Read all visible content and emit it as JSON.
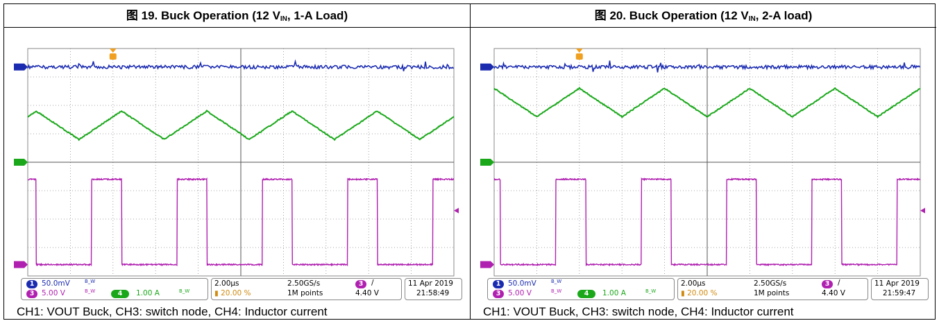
{
  "panels": [
    {
      "title_fig": "图 19. Buck Operation (12 V",
      "title_sub": "IN",
      "title_rest": ", 1-A Load)",
      "caption": "CH1: VOUT Buck, CH3: switch node, CH4: Inductor current",
      "status": {
        "ch1_num": "1",
        "ch1_scale": "50.0mV",
        "ch3_num": "3",
        "ch3_scale": "5.00 V",
        "ch4_num": "4",
        "ch4_scale": "1.00 A",
        "bw": "B_W",
        "timebase": "2.00µs",
        "trigger_pos": "20.00 %",
        "sample_rate": "2.50GS/s",
        "record": "1M points",
        "trig_ch": "3",
        "trig_slope": "/",
        "trig_level": "4.40 V",
        "date": "11 Apr  2019",
        "time": "21:58:49"
      }
    },
    {
      "title_fig": "图 20. Buck Operation (12 V",
      "title_sub": "IN",
      "title_rest": ", 2-A load)",
      "caption": "CH1: VOUT Buck, CH3: switch node, CH4: Inductor current",
      "status": {
        "ch1_num": "1",
        "ch1_scale": "50.0mV",
        "ch3_num": "3",
        "ch3_scale": "5.00 V",
        "ch4_num": "4",
        "ch4_scale": "1.00 A",
        "bw": "B_W",
        "timebase": "2.00µs",
        "trigger_pos": "20.00 %",
        "sample_rate": "2.50GS/s",
        "record": "1M points",
        "trig_ch": "3",
        "trig_slope": "/",
        "trig_level": "4.40 V",
        "date": "11 Apr  2019",
        "time": "21:59:47"
      }
    }
  ],
  "colors": {
    "ch1": "#1a2bb0",
    "ch3": "#b020b0",
    "ch4": "#1aa81a",
    "trigger": "#f0a020",
    "grid": "#8a8a8a"
  },
  "chart_data": [
    {
      "type": "line",
      "title": "图 19. Buck Operation (12 VIN, 1-A Load)",
      "x_divisions": 10,
      "y_divisions": 8,
      "timebase_per_div_us": 2.0,
      "trigger_position_pct": 20,
      "series": [
        {
          "name": "CH1: VOUT Buck",
          "shape": "flat with noise",
          "level_div": 7.35
        },
        {
          "name": "CH4: Inductor current",
          "shape": "triangle",
          "period_div": 2.0,
          "min_div": 4.8,
          "max_div": 5.8,
          "phase_div": 0.2
        },
        {
          "name": "CH3: switch node",
          "shape": "square",
          "period_div": 2.0,
          "duty": 0.35,
          "low_div": 0.4,
          "high_div": 3.4,
          "phase_div": 1.5
        }
      ]
    },
    {
      "type": "line",
      "title": "图 20. Buck Operation (12 VIN, 2-A load)",
      "x_divisions": 10,
      "y_divisions": 8,
      "timebase_per_div_us": 2.0,
      "trigger_position_pct": 20,
      "series": [
        {
          "name": "CH1: VOUT Buck",
          "shape": "flat with noise",
          "level_div": 7.35
        },
        {
          "name": "CH4: Inductor current",
          "shape": "triangle",
          "period_div": 2.0,
          "min_div": 5.6,
          "max_div": 6.6,
          "phase_div": 0.0
        },
        {
          "name": "CH3: switch node",
          "shape": "square",
          "period_div": 2.0,
          "duty": 0.35,
          "low_div": 0.4,
          "high_div": 3.4,
          "phase_div": 1.45
        }
      ]
    }
  ]
}
